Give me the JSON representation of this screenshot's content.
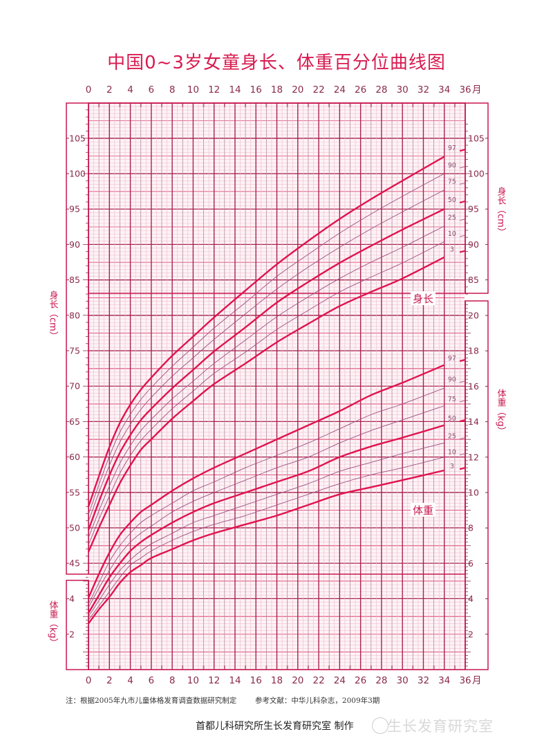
{
  "title": "中国0~3岁女童身长、体重百分位曲线图",
  "footer": {
    "note": "注：根据2005年九市儿童体格发育调查数据研究制定",
    "reference": "参考文献：中华儿科杂志，2009年3期",
    "maker": "首都儿科研究所生长发育研究室  制作",
    "watermark": "生长发育研究室"
  },
  "colors": {
    "frame": "#c8174f",
    "major": "#a8234f",
    "mid": "#e04a78",
    "minor": "#efc2d2",
    "main_curve": "#e0134f",
    "thin_curve": "#a0507f",
    "label": "#8a2a4a"
  },
  "chart_data": {
    "type": "line",
    "title": "中国0~3岁女童身长、体重百分位曲线图",
    "x_axis": {
      "unit": "月",
      "range": [
        0,
        36
      ],
      "ticks": [
        0,
        2,
        4,
        6,
        8,
        10,
        12,
        14,
        16,
        18,
        20,
        22,
        24,
        26,
        28,
        30,
        32,
        34,
        36
      ]
    },
    "grid": true,
    "months": [
      0,
      1,
      2,
      3,
      4,
      5,
      6,
      8,
      10,
      12,
      15,
      18,
      21,
      24,
      27,
      30,
      34
    ],
    "length": {
      "axis_label": "身长（cm）",
      "curve_label": "身长",
      "left_ticks": [
        45,
        50,
        55,
        60,
        65,
        70,
        75,
        80,
        85,
        90,
        95,
        100,
        105
      ],
      "right_ticks": [
        85,
        90,
        95,
        100,
        105
      ],
      "series": [
        {
          "name": "3",
          "main": true,
          "values": [
            46.6,
            50.0,
            53.2,
            56.3,
            58.8,
            61.0,
            62.5,
            65.4,
            67.9,
            70.3,
            73.2,
            76.2,
            78.8,
            81.3,
            83.3,
            85.2,
            88.2
          ],
          "value_36": 89.1
        },
        {
          "name": "10",
          "main": false,
          "values": [
            47.6,
            51.2,
            54.5,
            57.7,
            60.2,
            62.3,
            63.9,
            66.8,
            69.3,
            71.8,
            74.8,
            78.0,
            80.7,
            83.3,
            85.4,
            87.4,
            90.4
          ],
          "value_36": 91.3
        },
        {
          "name": "25",
          "main": false,
          "values": [
            48.6,
            52.4,
            55.9,
            59.1,
            61.6,
            63.7,
            65.3,
            68.2,
            70.7,
            73.2,
            76.5,
            79.8,
            82.6,
            85.2,
            87.5,
            89.6,
            92.6
          ],
          "value_36": 93.6
        },
        {
          "name": "50",
          "main": true,
          "values": [
            49.7,
            53.7,
            57.4,
            60.6,
            63.1,
            65.2,
            66.8,
            69.7,
            72.3,
            74.9,
            78.3,
            81.8,
            84.7,
            87.4,
            89.8,
            92.1,
            95.0
          ],
          "value_36": 96.1
        },
        {
          "name": "75",
          "main": false,
          "values": [
            50.9,
            55.0,
            58.8,
            62.1,
            64.6,
            66.7,
            68.4,
            71.4,
            74.0,
            76.6,
            80.2,
            83.7,
            86.8,
            89.6,
            92.2,
            94.6,
            97.7
          ],
          "value_36": 98.7
        },
        {
          "name": "90",
          "main": false,
          "values": [
            51.9,
            56.1,
            60.1,
            63.5,
            66.0,
            68.1,
            69.8,
            72.8,
            75.5,
            78.2,
            81.8,
            85.5,
            88.6,
            91.6,
            94.3,
            96.8,
            100.0
          ],
          "value_36": 101.0
        },
        {
          "name": "97",
          "main": true,
          "values": [
            53.0,
            57.3,
            61.4,
            64.8,
            67.4,
            69.5,
            71.2,
            74.3,
            77.0,
            79.7,
            83.5,
            87.2,
            90.5,
            93.6,
            96.4,
            99.0,
            102.4
          ],
          "value_36": 103.4
        }
      ]
    },
    "weight": {
      "axis_label": "体重（kg）",
      "curve_label": "体重",
      "left_ticks": [
        2,
        4
      ],
      "right_ticks": [
        2,
        4,
        6,
        8,
        10,
        12,
        14,
        16,
        18,
        20
      ],
      "series": [
        {
          "name": "3",
          "main": true,
          "values": [
            2.6,
            3.4,
            4.1,
            4.9,
            5.5,
            5.9,
            6.3,
            6.8,
            7.3,
            7.7,
            8.2,
            8.7,
            9.3,
            9.9,
            10.3,
            10.7,
            11.25
          ],
          "value_36": 11.4
        },
        {
          "name": "10",
          "main": false,
          "values": [
            2.8,
            3.6,
            4.4,
            5.2,
            5.9,
            6.3,
            6.7,
            7.3,
            7.8,
            8.2,
            8.7,
            9.3,
            9.9,
            10.5,
            11.0,
            11.4,
            12.0
          ],
          "value_36": 12.2
        },
        {
          "name": "25",
          "main": false,
          "values": [
            3.0,
            3.9,
            4.8,
            5.6,
            6.2,
            6.7,
            7.1,
            7.7,
            8.3,
            8.7,
            9.3,
            9.9,
            10.5,
            11.2,
            11.7,
            12.2,
            12.8
          ],
          "value_36": 13.1
        },
        {
          "name": "50",
          "main": true,
          "values": [
            3.2,
            4.2,
            5.2,
            6.0,
            6.7,
            7.2,
            7.6,
            8.3,
            8.9,
            9.4,
            10.0,
            10.6,
            11.2,
            12.0,
            12.6,
            13.1,
            13.8
          ],
          "value_36": 14.1
        },
        {
          "name": "75",
          "main": false,
          "values": [
            3.5,
            4.6,
            5.6,
            6.5,
            7.2,
            7.7,
            8.1,
            8.9,
            9.5,
            10.0,
            10.7,
            11.4,
            12.0,
            12.8,
            13.5,
            14.1,
            14.9
          ],
          "value_36": 15.2
        },
        {
          "name": "90",
          "main": false,
          "values": [
            3.7,
            4.9,
            6.1,
            7.0,
            7.7,
            8.3,
            8.7,
            9.4,
            10.1,
            10.6,
            11.4,
            12.1,
            12.8,
            13.6,
            14.4,
            15.0,
            15.9
          ],
          "value_36": 16.3
        },
        {
          "name": "97",
          "main": true,
          "values": [
            4.05,
            5.4,
            6.6,
            7.6,
            8.3,
            8.9,
            9.3,
            10.1,
            10.8,
            11.4,
            12.2,
            13.0,
            13.8,
            14.6,
            15.5,
            16.2,
            17.2
          ],
          "value_36": 17.5
        }
      ]
    }
  }
}
